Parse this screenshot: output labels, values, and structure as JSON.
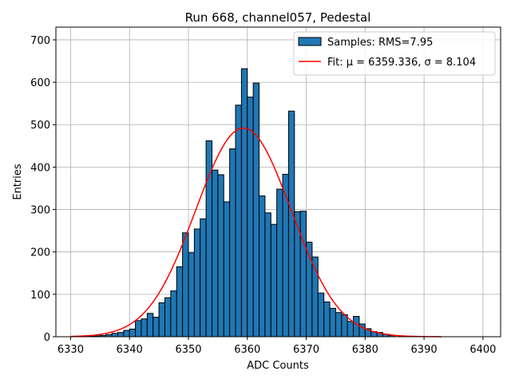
{
  "chart_data": {
    "type": "histogram",
    "title": "Run 668, channel057, Pedestal",
    "xlabel": "ADC Counts",
    "ylabel": "Entries",
    "xlim": [
      6327.5,
      6403
    ],
    "ylim": [
      0,
      730
    ],
    "xticks": [
      6330,
      6340,
      6350,
      6360,
      6370,
      6380,
      6390,
      6400
    ],
    "yticks": [
      0,
      100,
      200,
      300,
      400,
      500,
      600,
      700
    ],
    "grid": true,
    "legend_position": "top-right",
    "colors": {
      "bars": "#1f77b4",
      "bar_edge": "#000000",
      "fit": "#ff0000"
    },
    "bin_width": 1,
    "bins_left": [
      6333,
      6334,
      6335,
      6336,
      6337,
      6338,
      6339,
      6340,
      6341,
      6342,
      6343,
      6344,
      6345,
      6346,
      6347,
      6348,
      6349,
      6350,
      6351,
      6352,
      6353,
      6354,
      6355,
      6356,
      6357,
      6358,
      6359,
      6360,
      6361,
      6362,
      6363,
      6364,
      6365,
      6366,
      6367,
      6368,
      6369,
      6370,
      6371,
      6372,
      6373,
      6374,
      6375,
      6376,
      6377,
      6378,
      6379,
      6380,
      6381,
      6382,
      6383,
      6384
    ],
    "counts": [
      1,
      2,
      3,
      5,
      8,
      10,
      15,
      18,
      38,
      42,
      55,
      46,
      80,
      92,
      108,
      165,
      245,
      198,
      254,
      278,
      462,
      393,
      382,
      318,
      443,
      546,
      632,
      565,
      598,
      332,
      292,
      265,
      348,
      383,
      532,
      295,
      296,
      223,
      188,
      103,
      82,
      67,
      57,
      52,
      36,
      48,
      30,
      19,
      12,
      10,
      6,
      3
    ],
    "series": [
      {
        "name": "Samples: RMS=7.95",
        "kind": "bars"
      },
      {
        "name": "Fit: μ = 6359.336, σ = 8.104",
        "kind": "line"
      }
    ],
    "fit": {
      "mu": 6359.336,
      "sigma": 8.104,
      "amplitude": 492,
      "x_range": [
        6330,
        6393
      ]
    }
  }
}
